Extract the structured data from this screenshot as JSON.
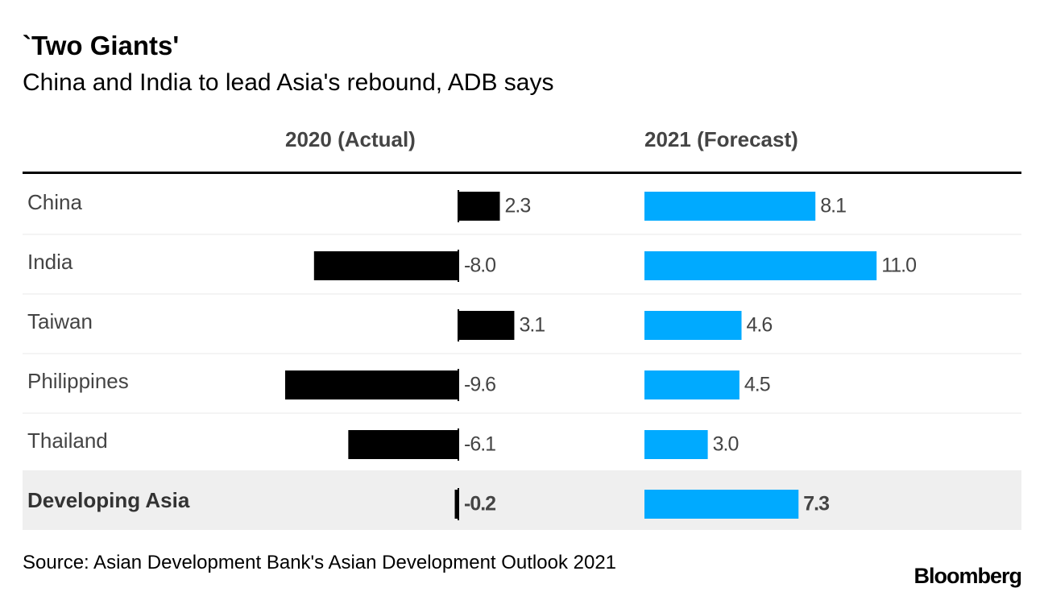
{
  "title": "`Two Giants'",
  "subtitle": "China and India to lead Asia's rebound, ADB says",
  "source": "Source: Asian Development Bank's Asian Development Outlook 2021",
  "brand": "Bloomberg",
  "colors": {
    "actual": "#000000",
    "forecast": "#00aaff",
    "highlight_row": "#efefef",
    "row_divider": "#e8e8e8"
  },
  "chart_data": {
    "type": "bar",
    "orientation": "horizontal",
    "categories": [
      "China",
      "India",
      "Taiwan",
      "Philippines",
      "Thailand",
      "Developing Asia"
    ],
    "highlighted_category": "Developing Asia",
    "series": [
      {
        "name": "2020 (Actual)",
        "values": [
          2.3,
          -8.0,
          3.1,
          -9.6,
          -6.1,
          -0.2
        ],
        "labels": [
          "2.3",
          "-8.0",
          "3.1",
          "-9.6",
          "-6.1",
          "-0.2"
        ]
      },
      {
        "name": "2021 (Forecast)",
        "values": [
          8.1,
          11.0,
          4.6,
          4.5,
          3.0,
          7.3
        ],
        "labels": [
          "8.1",
          "11.0",
          "4.6",
          "4.5",
          "3.0",
          "7.3"
        ]
      }
    ]
  }
}
